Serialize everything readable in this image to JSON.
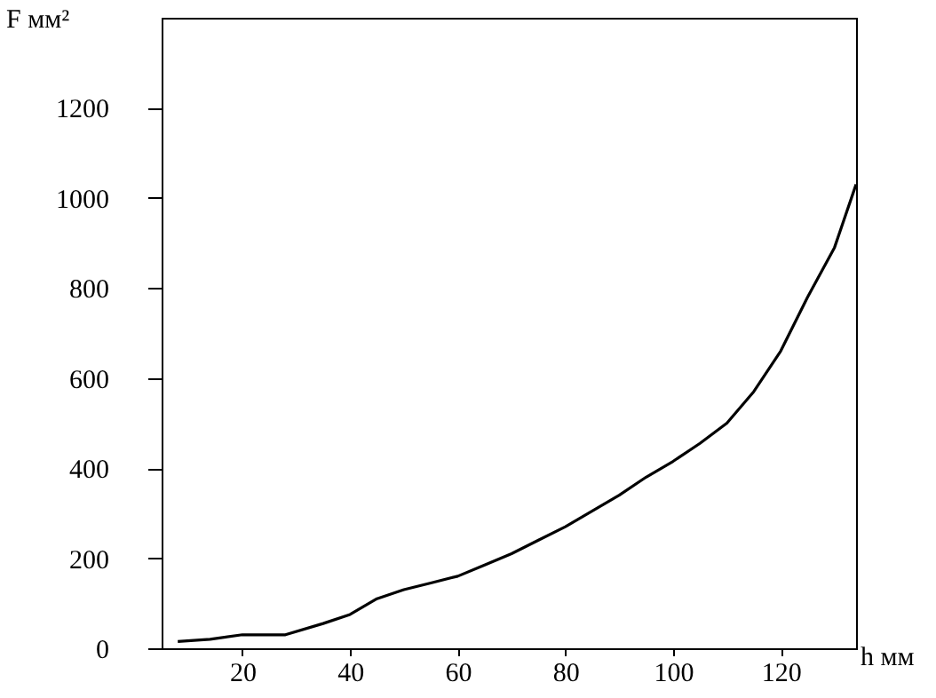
{
  "chart_data": {
    "type": "line",
    "xlabel": "h мм",
    "ylabel": "F мм²",
    "x": [
      8,
      14,
      20,
      28,
      35,
      40,
      45,
      50,
      55,
      60,
      65,
      70,
      75,
      80,
      85,
      90,
      95,
      100,
      105,
      110,
      115,
      120,
      125,
      130,
      134
    ],
    "series": [
      {
        "color": "#000000",
        "values": [
          15,
          20,
          30,
          30,
          55,
          75,
          110,
          130,
          145,
          160,
          185,
          210,
          240,
          270,
          305,
          340,
          380,
          415,
          455,
          500,
          570,
          660,
          780,
          890,
          1030
        ]
      }
    ],
    "xlim": [
      5,
      134
    ],
    "ylim": [
      0,
      1400
    ],
    "xticks": [
      20,
      40,
      60,
      80,
      100,
      120
    ],
    "yticks": [
      0,
      200,
      400,
      600,
      800,
      1000,
      1200
    ],
    "grid": false,
    "marker": "none",
    "line_style": "solid"
  }
}
